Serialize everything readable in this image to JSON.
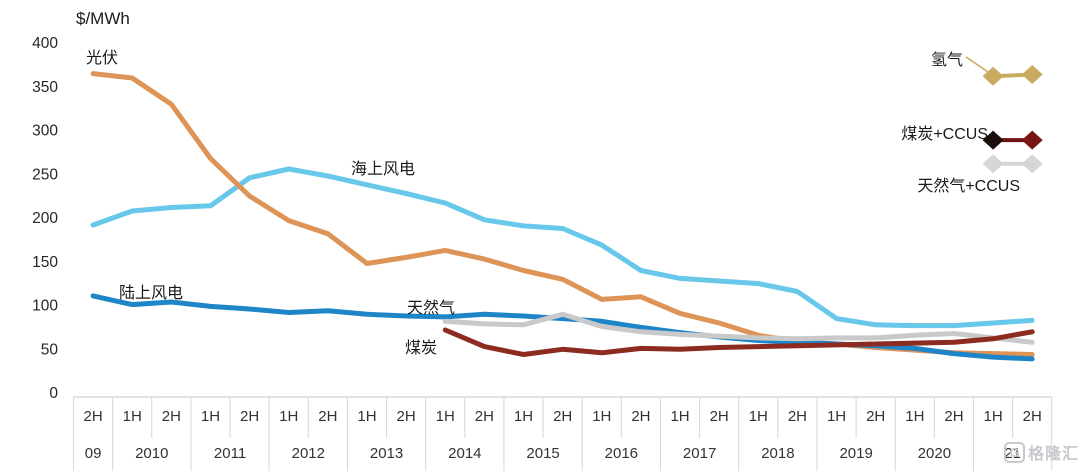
{
  "chart": {
    "title": "$/MWh",
    "annotations": {
      "solar": "光伏",
      "offshore_wind": "海上风电",
      "onshore_wind": "陆上风电",
      "natural_gas": "天然气",
      "coal": "煤炭"
    },
    "legend": {
      "hydrogen": "氢气",
      "coal_ccus": "煤炭+CCUS",
      "gas_ccus": "天然气+CCUS"
    },
    "watermark": {
      "logo_text": "G",
      "text": "格隆汇"
    }
  },
  "chart_data": {
    "type": "line",
    "title": "$/MWh",
    "grid": false,
    "ylim": [
      0,
      400
    ],
    "y_ticks": [
      0,
      50,
      100,
      150,
      200,
      250,
      300,
      350,
      400
    ],
    "categories": [
      "2H 09",
      "1H 10",
      "2H 10",
      "1H 11",
      "2H 11",
      "1H 12",
      "2H 12",
      "1H 13",
      "2H 13",
      "1H 14",
      "2H 14",
      "1H 15",
      "2H 15",
      "1H 16",
      "2H 16",
      "1H 17",
      "2H 17",
      "1H 18",
      "2H 18",
      "1H 19",
      "2H 19",
      "1H 20",
      "2H 20",
      "1H 21",
      "2H 21"
    ],
    "x_axis_rows": {
      "half_labels": [
        "2H",
        "1H",
        "2H",
        "1H",
        "2H",
        "1H",
        "2H",
        "1H",
        "2H",
        "1H",
        "2H",
        "1H",
        "2H",
        "1H",
        "2H",
        "1H",
        "2H",
        "1H",
        "2H",
        "1H",
        "2H",
        "1H",
        "2H",
        "1H",
        "2H"
      ],
      "year_labels": [
        "09",
        "2010",
        "2011",
        "2012",
        "2013",
        "2014",
        "2015",
        "2016",
        "2017",
        "2018",
        "2019",
        "2020",
        "21"
      ]
    },
    "series": [
      {
        "name": "海上风电",
        "color": "#67c8e9",
        "width": 5,
        "values": [
          192,
          208,
          212,
          214,
          246,
          256,
          248,
          238,
          228,
          217,
          198,
          191,
          188,
          169,
          140,
          131,
          128,
          125,
          116,
          85,
          78,
          77,
          77,
          80,
          83
        ]
      },
      {
        "name": "光伏",
        "color": "#de9357",
        "width": 5,
        "values": [
          365,
          360,
          330,
          268,
          225,
          197,
          182,
          148,
          155,
          163,
          153,
          140,
          130,
          107,
          110,
          91,
          80,
          66,
          59,
          56,
          52,
          49,
          46,
          45,
          44
        ]
      },
      {
        "name": "陆上风电",
        "color": "#1e86c8",
        "width": 5,
        "values": [
          111,
          101,
          104,
          99,
          96,
          92,
          94,
          90,
          88,
          87,
          90,
          88,
          85,
          82,
          75,
          69,
          64,
          60,
          58,
          56,
          54,
          51,
          45,
          41,
          39
        ]
      },
      {
        "name": "天然气",
        "color": "#c9c9c9",
        "width": 5,
        "values": [
          null,
          null,
          null,
          null,
          null,
          null,
          null,
          null,
          null,
          82,
          79,
          78,
          90,
          76,
          70,
          67,
          65,
          63,
          62,
          63,
          63,
          66,
          68,
          63,
          58
        ]
      },
      {
        "name": "煤炭",
        "color": "#8d2b20",
        "width": 5,
        "values": [
          null,
          null,
          null,
          null,
          null,
          null,
          null,
          null,
          null,
          72,
          53,
          44,
          50,
          46,
          51,
          50,
          52,
          53,
          54,
          55,
          56,
          57,
          58,
          62,
          70
        ]
      },
      {
        "name": "氢气",
        "color": "#c9ab60",
        "width": 4,
        "marker": "diamond",
        "marker_colors": [
          "#c9ab60",
          "#c9ab60"
        ],
        "values": [
          null,
          null,
          null,
          null,
          null,
          null,
          null,
          null,
          null,
          null,
          null,
          null,
          null,
          null,
          null,
          null,
          null,
          null,
          null,
          null,
          null,
          null,
          null,
          362,
          364
        ]
      },
      {
        "name": "煤炭+CCUS",
        "color": "#6e1312",
        "width": 4,
        "marker": "diamond",
        "marker_colors": [
          "#1a0d0b",
          "#7a1513"
        ],
        "values": [
          null,
          null,
          null,
          null,
          null,
          null,
          null,
          null,
          null,
          null,
          null,
          null,
          null,
          null,
          null,
          null,
          null,
          null,
          null,
          null,
          null,
          null,
          null,
          289,
          289
        ]
      },
      {
        "name": "天然气+CCUS",
        "color": "#d6d6d6",
        "width": 4,
        "marker": "diamond",
        "marker_colors": [
          "#d6d6d6",
          "#d6d6d6"
        ],
        "values": [
          null,
          null,
          null,
          null,
          null,
          null,
          null,
          null,
          null,
          null,
          null,
          null,
          null,
          null,
          null,
          null,
          null,
          null,
          null,
          null,
          null,
          null,
          null,
          262,
          262
        ]
      }
    ],
    "legend_note": "氢气 / 煤炭+CCUS / 天然气+CCUS appear only at 1H21–2H21 as short diamond-marked segments labeled at right"
  }
}
